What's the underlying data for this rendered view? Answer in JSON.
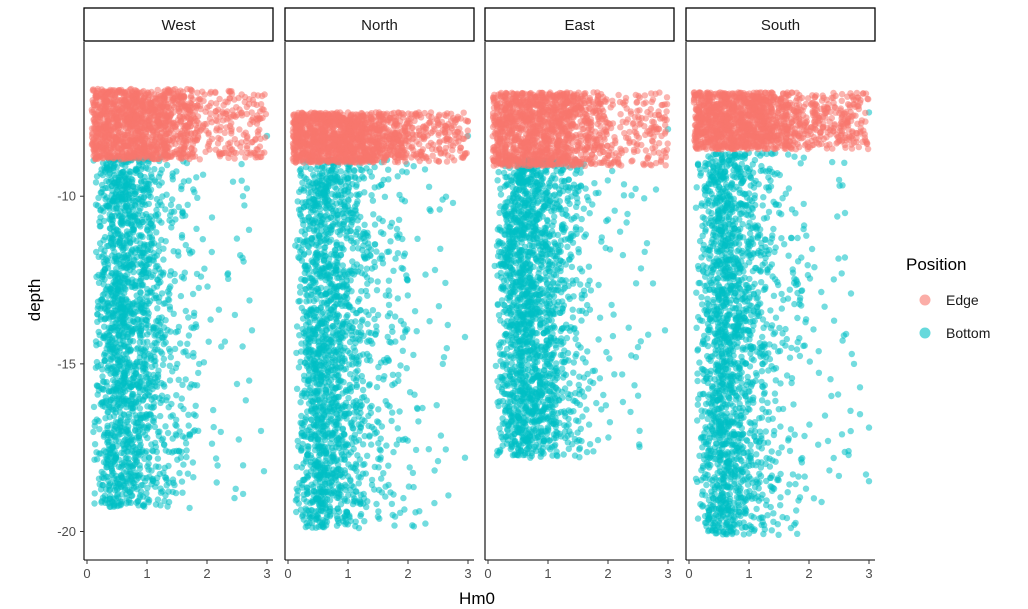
{
  "chart_data": {
    "type": "scatter",
    "title": "",
    "xlabel": "Hm0",
    "ylabel": "depth",
    "xlim": [
      -0.05,
      3.1
    ],
    "ylim": [
      -20.85,
      -5.4
    ],
    "x_ticks": [
      0,
      1,
      2,
      3
    ],
    "y_ticks": [
      -10,
      -15,
      -20
    ],
    "grid": false,
    "legend": {
      "title": "Position",
      "placement": "right",
      "entries": [
        {
          "name": "Edge",
          "color": "#F8766D"
        },
        {
          "name": "Bottom",
          "color": "#00BFC4"
        }
      ]
    },
    "facets": [
      {
        "label": "West",
        "edge": {
          "depth_range": [
            -8.9,
            -6.8
          ],
          "hm0_min": 0.08,
          "hm0_core_max": 1.9,
          "hm0_max": 3.0
        },
        "bottom": {
          "depth_range": [
            -19.3,
            -8.8
          ],
          "hm0_min": 0.08,
          "hm0_core_max": 1.6,
          "hm0_max": 3.0
        },
        "outliers": [
          [
            2.6,
            -10.0
          ],
          [
            2.7,
            -11.0
          ],
          [
            2.75,
            -14.0
          ],
          [
            2.9,
            -17.0
          ],
          [
            2.95,
            -18.2
          ],
          [
            2.5,
            -15.6
          ],
          [
            2.35,
            -12.3
          ],
          [
            3.0,
            -8.2
          ]
        ]
      },
      {
        "label": "North",
        "edge": {
          "depth_range": [
            -9.0,
            -7.5
          ],
          "hm0_min": 0.08,
          "hm0_core_max": 2.1,
          "hm0_max": 3.0
        },
        "bottom": {
          "depth_range": [
            -19.9,
            -8.9
          ],
          "hm0_min": 0.1,
          "hm0_core_max": 1.8,
          "hm0_max": 3.0
        },
        "outliers": [
          [
            2.95,
            -14.2
          ],
          [
            2.95,
            -17.8
          ],
          [
            2.5,
            -17.9
          ],
          [
            2.6,
            -14.8
          ],
          [
            2.45,
            -12.2
          ],
          [
            3.0,
            -8.2
          ],
          [
            2.75,
            -10.2
          ]
        ]
      },
      {
        "label": "East",
        "edge": {
          "depth_range": [
            -9.1,
            -6.9
          ],
          "hm0_min": 0.08,
          "hm0_core_max": 2.0,
          "hm0_max": 3.0
        },
        "bottom": {
          "depth_range": [
            -17.8,
            -8.9
          ],
          "hm0_min": 0.1,
          "hm0_core_max": 1.5,
          "hm0_max": 3.0
        },
        "outliers": [
          [
            2.8,
            -9.8
          ],
          [
            2.75,
            -12.6
          ],
          [
            2.95,
            -14.0
          ],
          [
            2.5,
            -14.5
          ],
          [
            3.0,
            -8.0
          ],
          [
            2.65,
            -11.4
          ]
        ]
      },
      {
        "label": "South",
        "edge": {
          "depth_range": [
            -8.6,
            -6.9
          ],
          "hm0_min": 0.08,
          "hm0_core_max": 2.0,
          "hm0_max": 3.0
        },
        "bottom": {
          "depth_range": [
            -20.1,
            -8.7
          ],
          "hm0_min": 0.1,
          "hm0_core_max": 1.7,
          "hm0_max": 3.0
        },
        "outliers": [
          [
            2.6,
            -10.5
          ],
          [
            2.7,
            -12.9
          ],
          [
            2.85,
            -15.7
          ],
          [
            2.85,
            -16.5
          ],
          [
            3.0,
            -16.9
          ],
          [
            2.95,
            -18.3
          ],
          [
            3.0,
            -18.5
          ],
          [
            2.55,
            -17.1
          ],
          [
            2.75,
            -15.0
          ],
          [
            3.0,
            -7.5
          ]
        ]
      }
    ]
  }
}
